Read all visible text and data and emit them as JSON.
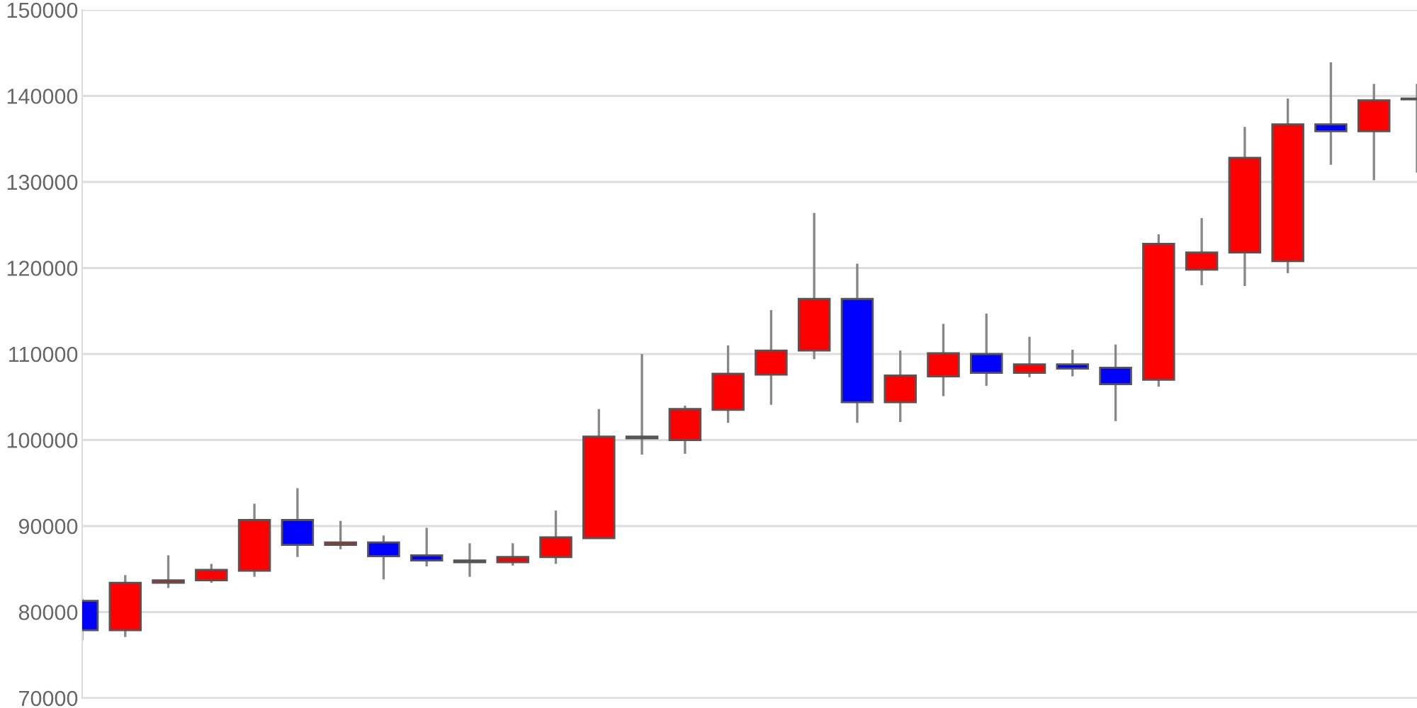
{
  "chart_data": {
    "type": "candlestick",
    "categories": [
      null,
      null,
      null,
      null,
      null,
      null,
      null,
      null,
      null,
      null,
      null,
      null,
      null,
      null,
      null,
      null,
      null,
      null,
      null,
      null,
      null,
      null,
      null,
      null,
      null,
      null,
      null,
      null,
      null,
      null,
      null,
      null
    ],
    "ohlc": [
      [
        81300,
        81600,
        76700,
        77900
      ],
      [
        77900,
        84300,
        77100,
        83400
      ],
      [
        83400,
        86600,
        82800,
        83700
      ],
      [
        83700,
        85600,
        83400,
        84900
      ],
      [
        84800,
        92600,
        84100,
        90700
      ],
      [
        90700,
        94400,
        86400,
        87800
      ],
      [
        87800,
        90600,
        87300,
        88100
      ],
      [
        88100,
        88900,
        83800,
        86500
      ],
      [
        86600,
        89800,
        85300,
        86000
      ],
      [
        86000,
        88000,
        84100,
        85800
      ],
      [
        85800,
        88000,
        85400,
        86400
      ],
      [
        86400,
        91800,
        85600,
        88700
      ],
      [
        88600,
        103600,
        88600,
        100400
      ],
      [
        100400,
        110000,
        98300,
        100200
      ],
      [
        100000,
        104000,
        98400,
        103600
      ],
      [
        103500,
        111000,
        102000,
        107700
      ],
      [
        107600,
        115100,
        104100,
        110400
      ],
      [
        110400,
        126400,
        109400,
        116400
      ],
      [
        116400,
        120500,
        102000,
        104400
      ],
      [
        104400,
        110400,
        102100,
        107500
      ],
      [
        107400,
        113500,
        105100,
        110100
      ],
      [
        110000,
        114700,
        106300,
        107800
      ],
      [
        107800,
        112000,
        107300,
        108800
      ],
      [
        108800,
        110500,
        107400,
        108300
      ],
      [
        108400,
        111100,
        102200,
        106500
      ],
      [
        107000,
        123900,
        106200,
        122800
      ],
      [
        119800,
        125800,
        118000,
        121800
      ],
      [
        121800,
        136400,
        117900,
        132800
      ],
      [
        120800,
        139700,
        119400,
        136700
      ],
      [
        136700,
        143900,
        132000,
        135900
      ],
      [
        135900,
        141400,
        130200,
        139500
      ],
      [
        139700,
        141400,
        131100,
        139600
      ]
    ],
    "colors": [
      "#0000ff",
      "#ff0000",
      "#ff0000",
      "#ff0000",
      "#ff0000",
      "#0000ff",
      "#ff0000",
      "#0000ff",
      "#0000ff",
      "#0000ff",
      "#ff0000",
      "#ff0000",
      "#ff0000",
      "#0000ff",
      "#ff0000",
      "#ff0000",
      "#ff0000",
      "#ff0000",
      "#0000ff",
      "#ff0000",
      "#ff0000",
      "#0000ff",
      "#ff0000",
      "#0000ff",
      "#0000ff",
      "#ff0000",
      "#ff0000",
      "#ff0000",
      "#ff0000",
      "#0000ff",
      "#ff0000",
      "#0000ff"
    ],
    "ylim": [
      70000,
      150000
    ],
    "yticks": [
      70000,
      80000,
      90000,
      100000,
      110000,
      120000,
      130000,
      140000,
      150000
    ],
    "grid": "y",
    "tick_labels": "y"
  }
}
